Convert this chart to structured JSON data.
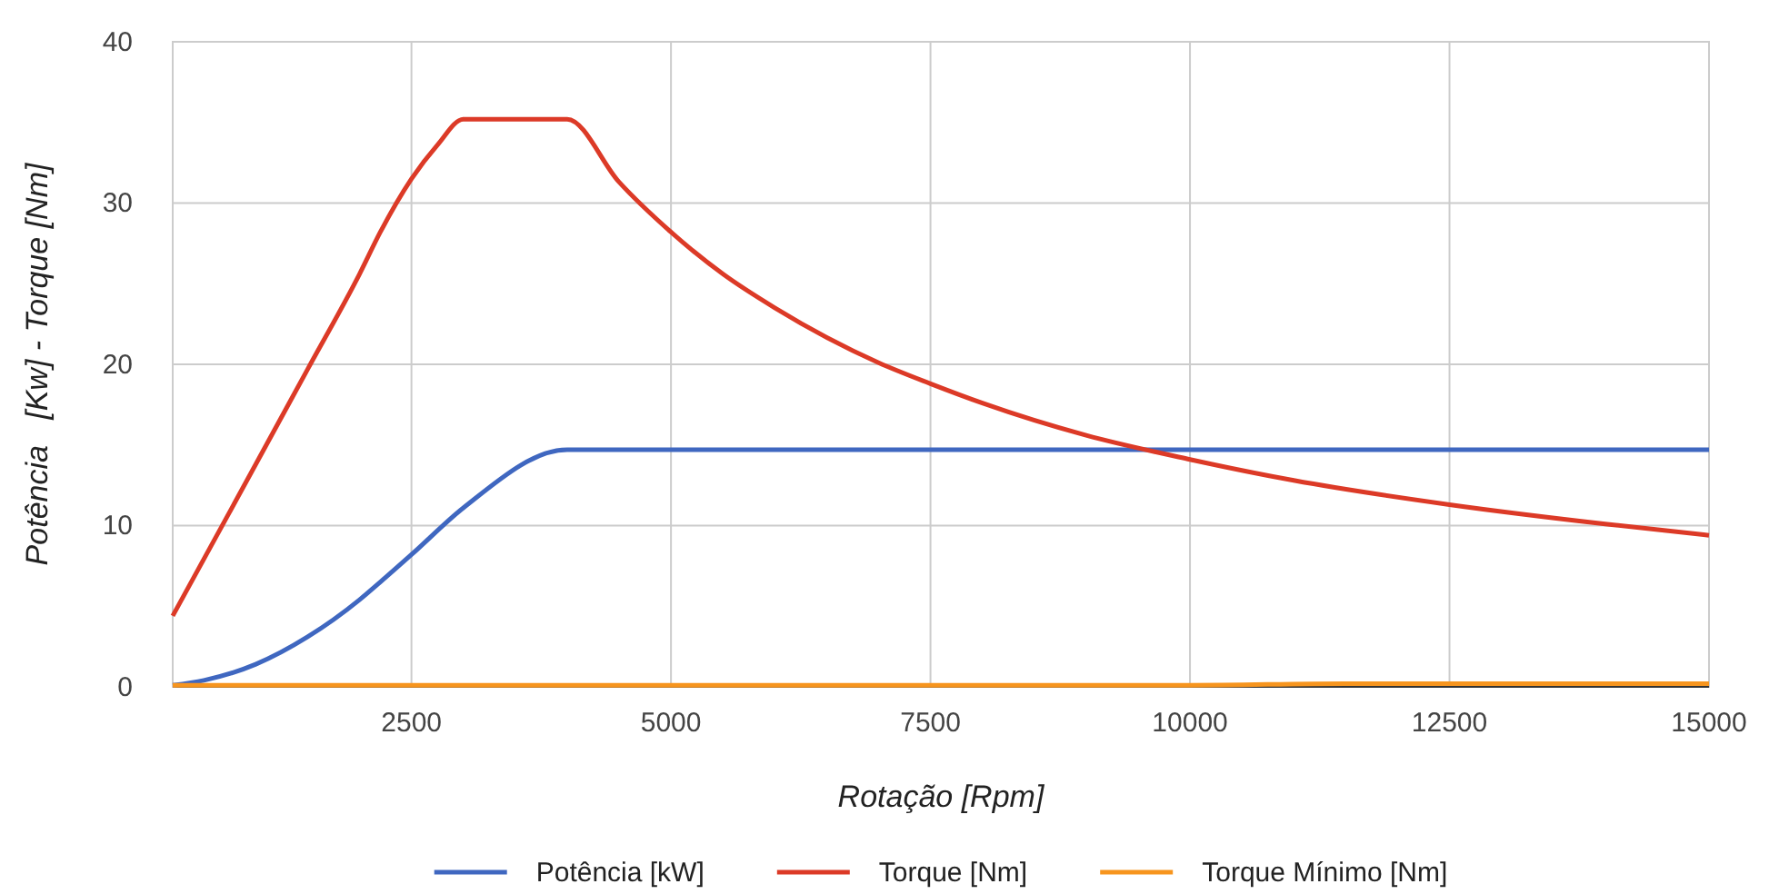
{
  "chart_data": {
    "type": "line",
    "xlabel": "Rotação [Rpm]",
    "ylabel": "Potência   [Kw] - Torque [Nm]",
    "xlim": [
      200,
      15000
    ],
    "xticks": [
      2500,
      5000,
      7500,
      10000,
      12500,
      15000
    ],
    "ylim": [
      0,
      40
    ],
    "yticks": [
      0,
      10,
      20,
      30,
      40
    ],
    "grid": true,
    "legend": "bottom",
    "marker": "none",
    "line_style": "solid",
    "series": [
      {
        "name": "Potência [kW]",
        "color": "#3f67c0",
        "x": [
          200,
          500,
          1000,
          1500,
          2000,
          2200,
          2500,
          3000,
          4000,
          6000,
          8000,
          10000,
          12000,
          15000
        ],
        "values": [
          0.1,
          0.4,
          1.4,
          3.1,
          5.4,
          6.5,
          8.2,
          11.1,
          14.7,
          14.7,
          14.7,
          14.7,
          14.7,
          14.7
        ]
      },
      {
        "name": "Torque [Nm]",
        "color": "#dc3a27",
        "x": [
          200,
          1000,
          1500,
          2000,
          2200,
          2500,
          2750,
          3000,
          4000,
          4500,
          5000,
          5500,
          6000,
          7000,
          7500,
          8000,
          9000,
          10000,
          11000,
          12500,
          14000,
          15000
        ],
        "values": [
          4.4,
          13.8,
          19.7,
          25.6,
          28.2,
          31.5,
          33.6,
          35.2,
          35.2,
          31.3,
          28.2,
          25.6,
          23.5,
          20.1,
          18.8,
          17.6,
          15.6,
          14.1,
          12.8,
          11.3,
          10.1,
          9.4
        ]
      },
      {
        "name": "Torque Mínimo [Nm]",
        "color": "#f7951e",
        "x": [
          200,
          5000,
          10000,
          11500,
          15000
        ],
        "values": [
          0.1,
          0.1,
          0.1,
          0.2,
          0.2
        ]
      }
    ]
  }
}
